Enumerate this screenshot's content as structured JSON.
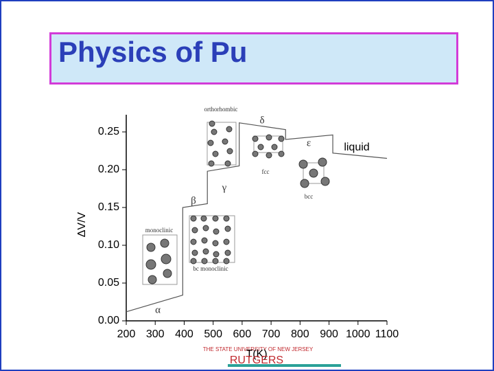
{
  "slide_title": "Physics  of Pu",
  "chart_data": {
    "type": "line",
    "x_label": "T(K)",
    "y_label": "ΔV/V",
    "x": [
      200,
      395,
      395,
      480,
      480,
      590,
      590,
      750,
      750,
      913,
      913,
      1100
    ],
    "series": [
      {
        "name": "ΔV/V",
        "color": "#555555",
        "values": [
          0.012,
          0.034,
          0.15,
          0.155,
          0.198,
          0.205,
          0.262,
          0.253,
          0.24,
          0.246,
          0.222,
          0.215
        ]
      }
    ],
    "xlim": [
      200,
      1100
    ],
    "ylim": [
      0,
      0.27
    ],
    "xticks": [
      200,
      300,
      400,
      500,
      600,
      700,
      800,
      900,
      1000,
      1100
    ],
    "yticks": [
      {
        "value": 0,
        "label": "0.00"
      },
      {
        "value": 0.05,
        "label": "0.05"
      },
      {
        "value": 0.1,
        "label": "0.10"
      },
      {
        "value": 0.15,
        "label": "0.15"
      },
      {
        "value": 0.2,
        "label": "0.20"
      },
      {
        "value": 0.25,
        "label": "0.25"
      }
    ],
    "annotations": [
      "α",
      "β",
      "γ",
      "δ",
      "ε",
      "liquid",
      "orthorhombic",
      "fcc",
      "bcc",
      "monoclinic",
      "bc monoclinic"
    ]
  },
  "footer": {
    "university": "THE STATE UNIVERSITY OF NEW JERSEY",
    "name": "RUTGERS"
  }
}
